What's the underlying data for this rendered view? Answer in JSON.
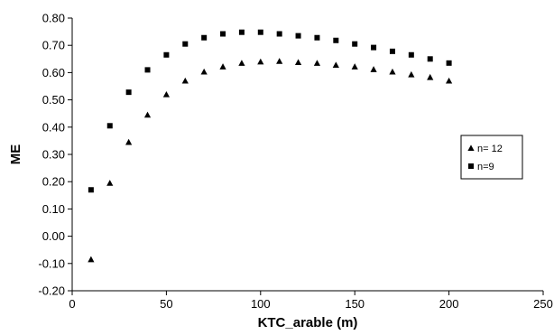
{
  "chart_data": {
    "type": "scatter",
    "title": "",
    "xlabel": "KTC_arable (m)",
    "ylabel": "ME",
    "xlim": [
      0,
      250
    ],
    "ylim": [
      -0.2,
      0.8
    ],
    "xticks": [
      0,
      50,
      100,
      150,
      200,
      250
    ],
    "yticks": [
      -0.2,
      -0.1,
      0.0,
      0.1,
      0.2,
      0.3,
      0.4,
      0.5,
      0.6,
      0.7,
      0.8
    ],
    "xtick_labels": [
      "0",
      "50",
      "100",
      "150",
      "200",
      "250"
    ],
    "ytick_labels": [
      "-0.20",
      "-0.10",
      "0.00",
      "0.10",
      "0.20",
      "0.30",
      "0.40",
      "0.50",
      "0.60",
      "0.70",
      "0.80"
    ],
    "grid": false,
    "legend_position": "right",
    "series": [
      {
        "name": "n= 12",
        "marker": "triangle",
        "color": "#000000",
        "x": [
          10,
          20,
          30,
          40,
          50,
          60,
          70,
          80,
          90,
          100,
          110,
          120,
          130,
          140,
          150,
          160,
          170,
          180,
          190,
          200
        ],
        "y": [
          -0.085,
          0.195,
          0.345,
          0.445,
          0.52,
          0.57,
          0.603,
          0.622,
          0.635,
          0.64,
          0.642,
          0.638,
          0.635,
          0.628,
          0.622,
          0.612,
          0.603,
          0.593,
          0.583,
          0.57
        ]
      },
      {
        "name": "n=9",
        "marker": "square",
        "color": "#000000",
        "x": [
          10,
          20,
          30,
          40,
          50,
          60,
          70,
          80,
          90,
          100,
          110,
          120,
          130,
          140,
          150,
          160,
          170,
          180,
          190,
          200
        ],
        "y": [
          0.17,
          0.405,
          0.528,
          0.61,
          0.665,
          0.705,
          0.728,
          0.742,
          0.748,
          0.748,
          0.742,
          0.735,
          0.728,
          0.718,
          0.705,
          0.692,
          0.678,
          0.665,
          0.65,
          0.635
        ]
      }
    ]
  }
}
